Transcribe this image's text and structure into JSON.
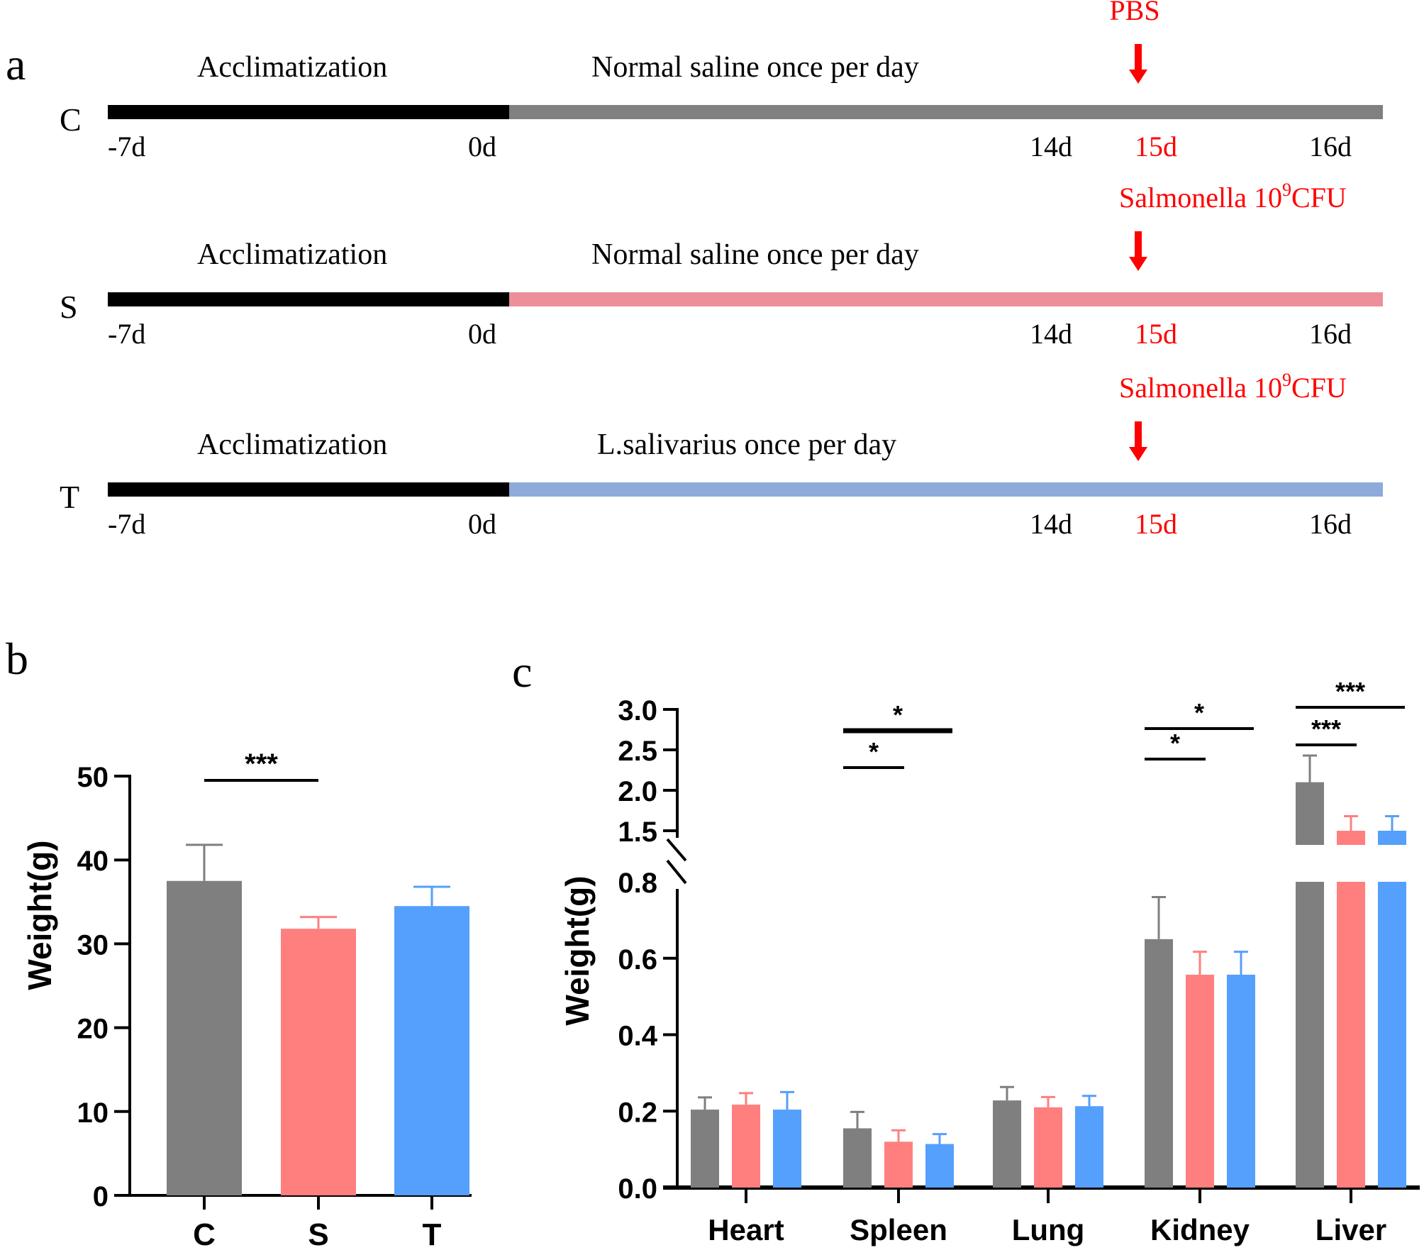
{
  "panel_labels": {
    "a": "a",
    "b": "b",
    "c": "c"
  },
  "colors": {
    "control": "#7f7f7f",
    "salmonella": "#ff7f7f",
    "treatment": "#559ffd",
    "timeline_control": "#808080",
    "timeline_salmonella": "#ec8f9a",
    "timeline_treatment": "#8eaadb",
    "acclimatization": "#000000",
    "highlight_red": "#ff0000"
  },
  "timeline": {
    "rows": [
      {
        "group": "C",
        "phase1_label": "Acclimatization",
        "phase2_label": "Normal saline once per day",
        "challenge_label": "PBS",
        "challenge_sup": "",
        "challenge_suffix": "",
        "phase2_color_key": "timeline_control",
        "ticks": [
          "-7d",
          "0d",
          "14d",
          "15d",
          "16d"
        ]
      },
      {
        "group": "S",
        "phase1_label": "Acclimatization",
        "phase2_label": "Normal saline once per day",
        "challenge_label": "Salmonella 10",
        "challenge_sup": "9",
        "challenge_suffix": "CFU",
        "phase2_color_key": "timeline_salmonella",
        "ticks": [
          "-7d",
          "0d",
          "14d",
          "15d",
          "16d"
        ]
      },
      {
        "group": "T",
        "phase1_label": "Acclimatization",
        "phase2_label": "L.salivarius once per day",
        "challenge_label": "Salmonella 10",
        "challenge_sup": "9",
        "challenge_suffix": "CFU",
        "phase2_color_key": "timeline_treatment",
        "ticks": [
          "-7d",
          "0d",
          "14d",
          "15d",
          "16d"
        ]
      }
    ],
    "highlight_tick": "15d"
  },
  "chart_data": [
    {
      "id": "b",
      "type": "bar",
      "title": "",
      "xlabel": "",
      "ylabel": "Weight(g)",
      "ylim": [
        0,
        50
      ],
      "yticks": [
        "0",
        "10",
        "20",
        "30",
        "40",
        "50"
      ],
      "categories": [
        "C",
        "S",
        "T"
      ],
      "values": [
        37.5,
        31.8,
        34.5
      ],
      "errors": [
        4.3,
        1.4,
        2.3
      ],
      "significance": [
        {
          "from": "C",
          "to": "S",
          "label": "***"
        }
      ]
    },
    {
      "id": "c",
      "type": "bar",
      "title": "",
      "xlabel": "",
      "ylabel": "Weight(g)",
      "axis_break": {
        "lower": [
          0,
          0.8
        ],
        "upper": [
          1.5,
          3.0
        ]
      },
      "yticks_lower": [
        "0.0",
        "0.2",
        "0.4",
        "0.6",
        "0.8"
      ],
      "yticks_upper": [
        "1.5",
        "2.0",
        "2.5",
        "3.0"
      ],
      "categories": [
        "Heart",
        "Spleen",
        "Lung",
        "Kidney",
        "Liver"
      ],
      "series": [
        {
          "name": "C",
          "values": [
            0.204,
            0.155,
            0.228,
            0.65,
            2.1
          ],
          "errors": [
            0.032,
            0.043,
            0.035,
            0.11,
            0.33
          ]
        },
        {
          "name": "S",
          "values": [
            0.217,
            0.12,
            0.21,
            0.557,
            1.5
          ],
          "errors": [
            0.03,
            0.03,
            0.027,
            0.06,
            0.18
          ]
        },
        {
          "name": "T",
          "values": [
            0.204,
            0.114,
            0.213,
            0.557,
            1.5
          ],
          "errors": [
            0.046,
            0.026,
            0.027,
            0.06,
            0.18
          ]
        }
      ],
      "significance": [
        {
          "category": "Spleen",
          "from": "C",
          "to": "S",
          "label": "*"
        },
        {
          "category": "Spleen",
          "from": "C",
          "to": "T",
          "label": "*"
        },
        {
          "category": "Kidney",
          "from": "C",
          "to": "S",
          "label": "*"
        },
        {
          "category": "Kidney",
          "from": "C",
          "to": "T",
          "label": "*"
        },
        {
          "category": "Liver",
          "from": "C",
          "to": "S",
          "label": "***"
        },
        {
          "category": "Liver",
          "from": "C",
          "to": "T",
          "label": "***"
        }
      ]
    }
  ]
}
